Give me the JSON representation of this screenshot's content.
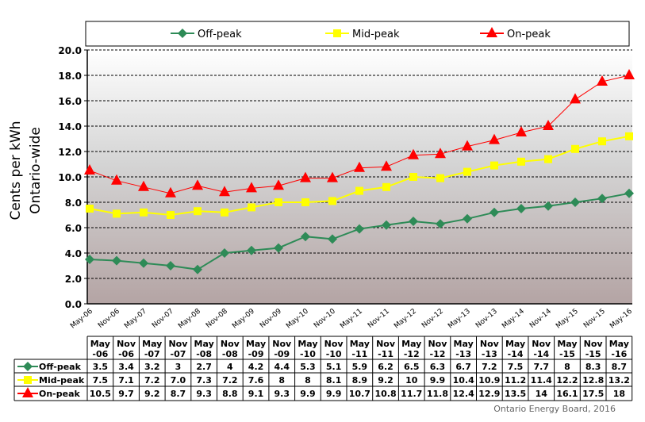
{
  "chart_data": {
    "type": "line",
    "title": "",
    "xlabel": "",
    "ylabel": "Cents per kWh",
    "ylabel2": "Ontario-wide",
    "ylim": [
      0,
      20
    ],
    "yticks": [
      "0.0",
      "2.0",
      "4.0",
      "6.0",
      "8.0",
      "10.0",
      "12.0",
      "14.0",
      "16.0",
      "18.0",
      "20.0"
    ],
    "grid": true,
    "legend_position": "top",
    "categories": [
      "May-06",
      "Nov-06",
      "May-07",
      "Nov-07",
      "May-08",
      "Nov-08",
      "May-09",
      "Nov-09",
      "May-10",
      "Nov-10",
      "May-11",
      "Nov-11",
      "May-12",
      "Nov-12",
      "May-13",
      "Nov-13",
      "May-14",
      "Nov-14",
      "May-15",
      "Nov-15",
      "May-16"
    ],
    "table_headers": [
      [
        "May",
        "-06"
      ],
      [
        "Nov",
        "-06"
      ],
      [
        "May",
        "-07"
      ],
      [
        "Nov",
        "-07"
      ],
      [
        "May",
        "-08"
      ],
      [
        "Nov",
        "-08"
      ],
      [
        "May",
        "-09"
      ],
      [
        "Nov",
        "-09"
      ],
      [
        "May",
        "-10"
      ],
      [
        "Nov",
        "-10"
      ],
      [
        "May",
        "-11"
      ],
      [
        "Nov",
        "-11"
      ],
      [
        "May",
        "-12"
      ],
      [
        "Nov",
        "-12"
      ],
      [
        "May",
        "-13"
      ],
      [
        "Nov",
        "-13"
      ],
      [
        "May",
        "-14"
      ],
      [
        "Nov",
        "-14"
      ],
      [
        "May",
        "-15"
      ],
      [
        "Nov",
        "-15"
      ],
      [
        "May",
        "-16"
      ]
    ],
    "series": [
      {
        "name": "Off-peak",
        "color": "#2e8b57",
        "marker": "diamond",
        "values": [
          3.5,
          3.4,
          3.2,
          3,
          2.7,
          4,
          4.2,
          4.4,
          5.3,
          5.1,
          5.9,
          6.2,
          6.5,
          6.3,
          6.7,
          7.2,
          7.5,
          7.7,
          8,
          8.3,
          8.7
        ],
        "labels": [
          "3.5",
          "3.4",
          "3.2",
          "3",
          "2.7",
          "4",
          "4.2",
          "4.4",
          "5.3",
          "5.1",
          "5.9",
          "6.2",
          "6.5",
          "6.3",
          "6.7",
          "7.2",
          "7.5",
          "7.7",
          "8",
          "8.3",
          "8.7"
        ]
      },
      {
        "name": "Mid-peak",
        "color": "#ffff00",
        "marker": "square",
        "values": [
          7.5,
          7.1,
          7.2,
          7.0,
          7.3,
          7.2,
          7.6,
          8,
          8,
          8.1,
          8.9,
          9.2,
          10,
          9.9,
          10.4,
          10.9,
          11.2,
          11.4,
          12.2,
          12.8,
          13.2
        ],
        "labels": [
          "7.5",
          "7.1",
          "7.2",
          "7.0",
          "7.3",
          "7.2",
          "7.6",
          "8",
          "8",
          "8.1",
          "8.9",
          "9.2",
          "10",
          "9.9",
          "10.4",
          "10.9",
          "11.2",
          "11.4",
          "12.2",
          "12.8",
          "13.2"
        ]
      },
      {
        "name": "On-peak",
        "color": "#ff0000",
        "marker": "triangle",
        "values": [
          10.5,
          9.7,
          9.2,
          8.7,
          9.3,
          8.8,
          9.1,
          9.3,
          9.9,
          9.9,
          10.7,
          10.8,
          11.7,
          11.8,
          12.4,
          12.9,
          13.5,
          14,
          16.1,
          17.5,
          18
        ],
        "labels": [
          "10.5",
          "9.7",
          "9.2",
          "8.7",
          "9.3",
          "8.8",
          "9.1",
          "9.3",
          "9.9",
          "9.9",
          "10.7",
          "10.8",
          "11.7",
          "11.8",
          "12.4",
          "12.9",
          "13.5",
          "14",
          "16.1",
          "17.5",
          "18"
        ]
      }
    ]
  },
  "credit": "Ontario Energy Board, 2016"
}
